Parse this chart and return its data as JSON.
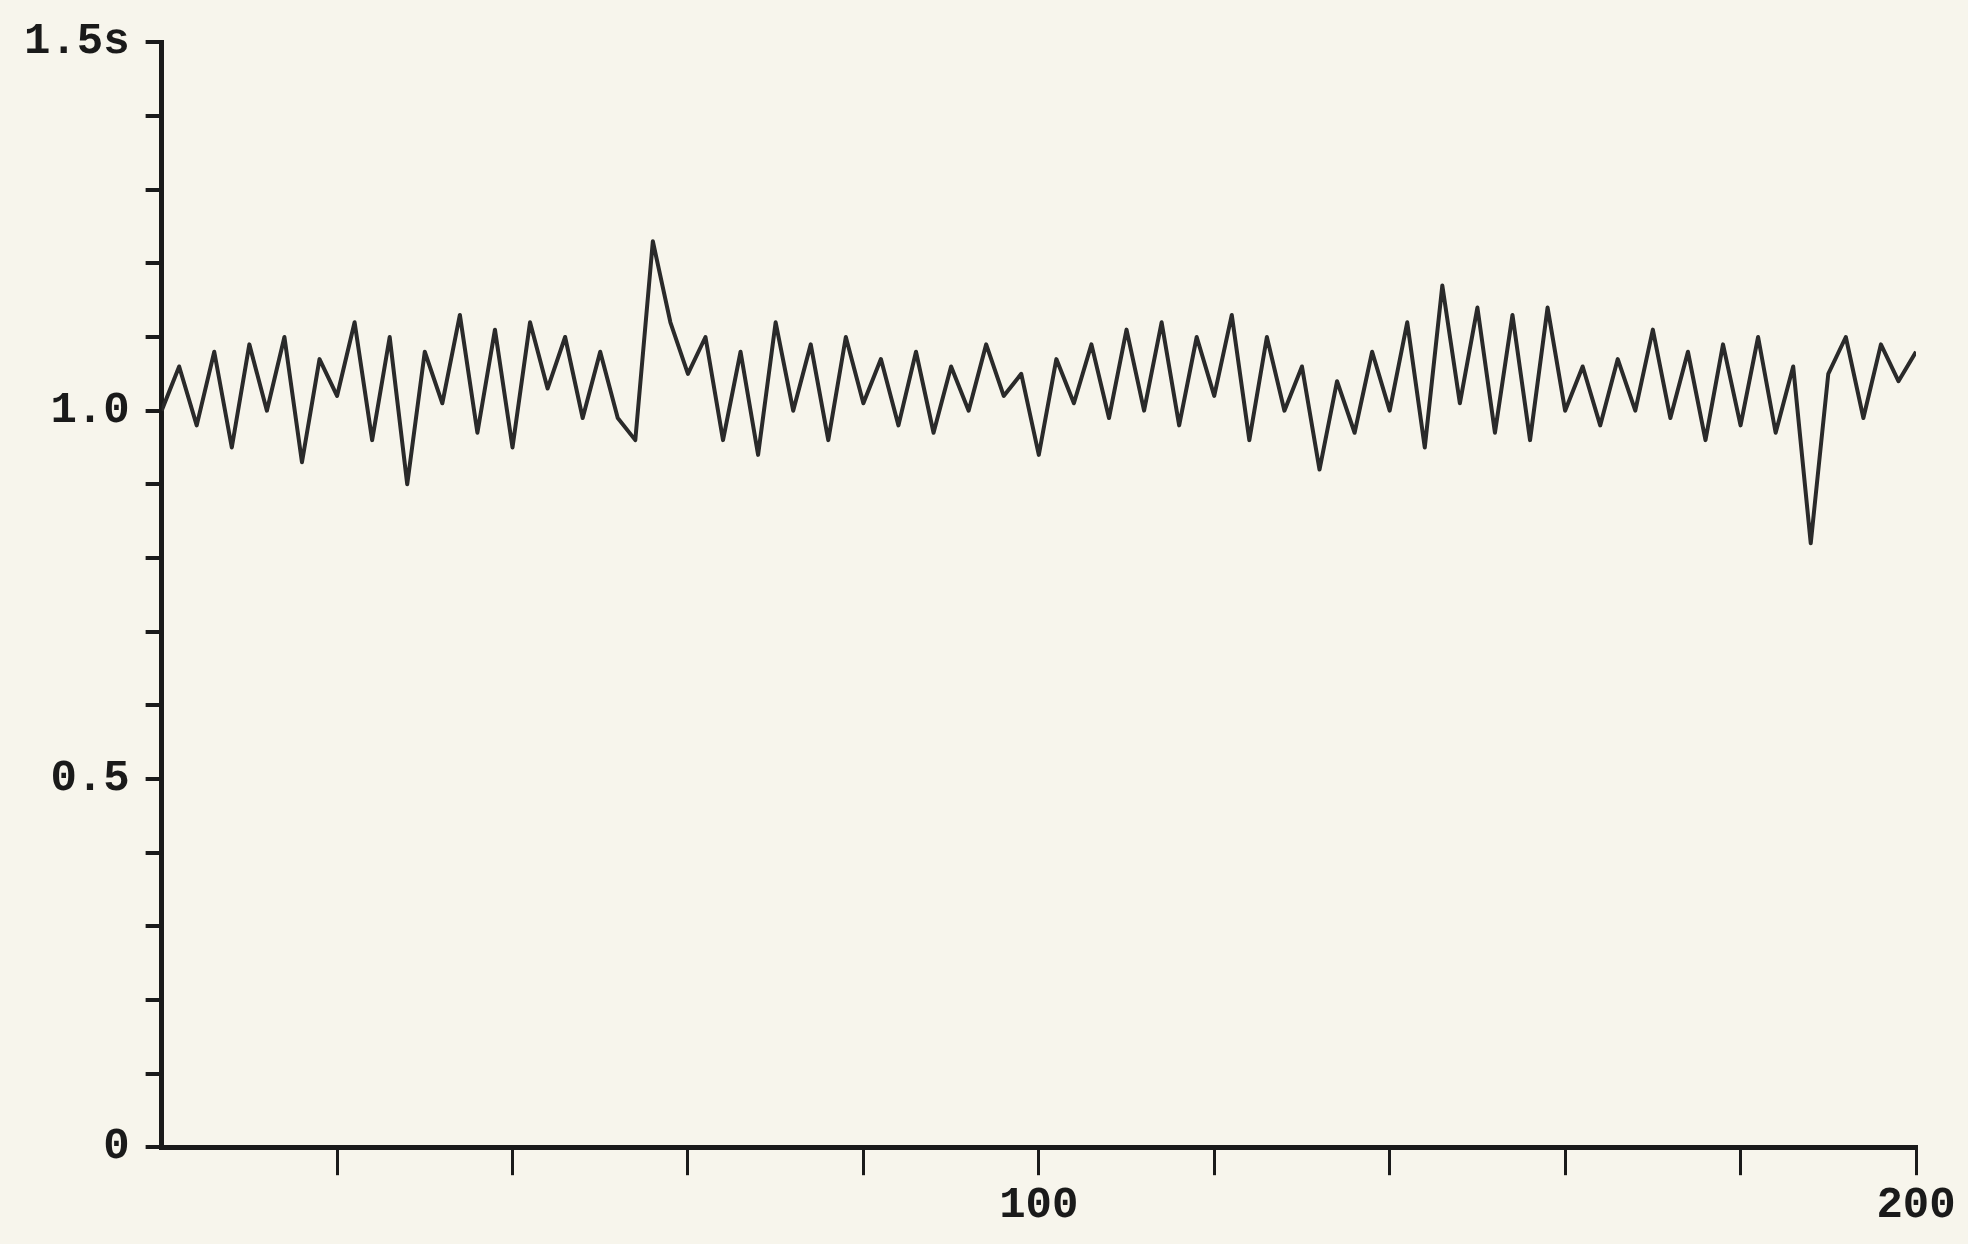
{
  "chart_data": {
    "type": "line",
    "x": [
      0,
      2,
      4,
      6,
      8,
      10,
      12,
      14,
      16,
      18,
      20,
      22,
      24,
      26,
      28,
      30,
      32,
      34,
      36,
      38,
      40,
      42,
      44,
      46,
      48,
      50,
      52,
      54,
      56,
      58,
      60,
      62,
      64,
      66,
      68,
      70,
      72,
      74,
      76,
      78,
      80,
      82,
      84,
      86,
      88,
      90,
      92,
      94,
      96,
      98,
      100,
      102,
      104,
      106,
      108,
      110,
      112,
      114,
      116,
      118,
      120,
      122,
      124,
      126,
      128,
      130,
      132,
      134,
      136,
      138,
      140,
      142,
      144,
      146,
      148,
      150,
      152,
      154,
      156,
      158,
      160,
      162,
      164,
      166,
      168,
      170,
      172,
      174,
      176,
      178,
      180,
      182,
      184,
      186,
      188,
      190,
      192,
      194,
      196,
      198,
      200
    ],
    "series": [
      {
        "color": "#2a2a2a",
        "values": [
          1.0,
          1.06,
          0.98,
          1.08,
          0.95,
          1.09,
          1.0,
          1.1,
          0.93,
          1.07,
          1.02,
          1.12,
          0.96,
          1.1,
          0.9,
          1.08,
          1.01,
          1.13,
          0.97,
          1.11,
          0.95,
          1.12,
          1.03,
          1.1,
          0.99,
          1.08,
          0.99,
          0.96,
          1.23,
          1.12,
          1.05,
          1.1,
          0.96,
          1.08,
          0.94,
          1.12,
          1.0,
          1.09,
          0.96,
          1.1,
          1.01,
          1.07,
          0.98,
          1.08,
          0.97,
          1.06,
          1.0,
          1.09,
          1.02,
          1.05,
          0.94,
          1.07,
          1.01,
          1.09,
          0.99,
          1.11,
          1.0,
          1.12,
          0.98,
          1.1,
          1.02,
          1.13,
          0.96,
          1.1,
          1.0,
          1.06,
          0.92,
          1.04,
          0.97,
          1.08,
          1.0,
          1.12,
          0.95,
          1.17,
          1.01,
          1.14,
          0.97,
          1.13,
          0.96,
          1.14,
          1.0,
          1.06,
          0.98,
          1.07,
          1.0,
          1.11,
          0.99,
          1.08,
          0.96,
          1.09,
          0.98,
          1.1,
          0.97,
          1.06,
          0.82,
          1.05,
          1.1,
          0.99,
          1.09,
          1.04,
          1.08
        ]
      }
    ],
    "xlim": [
      0,
      200
    ],
    "xticks": [
      {
        "value": 20,
        "label": null
      },
      {
        "value": 40,
        "label": null
      },
      {
        "value": 60,
        "label": null
      },
      {
        "value": 80,
        "label": null
      },
      100,
      {
        "value": 120,
        "label": null
      },
      {
        "value": 140,
        "label": null
      },
      {
        "value": 160,
        "label": null
      },
      {
        "value": 180,
        "label": null
      },
      200
    ],
    "ylim": [
      0,
      1.5
    ],
    "yticks": [
      0,
      {
        "value": 0.1,
        "label": null
      },
      {
        "value": 0.2,
        "label": null
      },
      {
        "value": 0.3,
        "label": null
      },
      {
        "value": 0.4,
        "label": null
      },
      0.5,
      {
        "value": 0.6,
        "label": null
      },
      {
        "value": 0.7,
        "label": null
      },
      {
        "value": 0.8,
        "label": null
      },
      {
        "value": 0.9,
        "label": null
      },
      {
        "value": 1.0,
        "label": "1.0"
      },
      {
        "value": 1.1,
        "label": null
      },
      {
        "value": 1.2,
        "label": null
      },
      {
        "value": 1.3,
        "label": null
      },
      {
        "value": 1.4,
        "label": null
      },
      {
        "value": 1.5,
        "label": "1.5s"
      }
    ],
    "grid": false,
    "legend": false,
    "marker": "none",
    "line_style": "solid"
  }
}
